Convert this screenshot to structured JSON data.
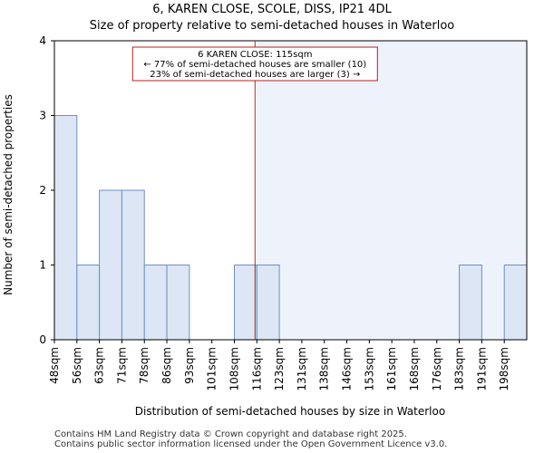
{
  "chart_data": {
    "type": "bar",
    "title": "6, KAREN CLOSE, SCOLE, DISS, IP21 4DL",
    "subtitle": "Size of property relative to semi-detached houses in Waterloo",
    "xlabel": "Distribution of semi-detached houses by size in Waterloo",
    "ylabel": "Number of semi-detached properties",
    "categories": [
      "48sqm",
      "56sqm",
      "63sqm",
      "71sqm",
      "78sqm",
      "86sqm",
      "93sqm",
      "101sqm",
      "108sqm",
      "116sqm",
      "123sqm",
      "131sqm",
      "138sqm",
      "146sqm",
      "153sqm",
      "161sqm",
      "168sqm",
      "176sqm",
      "183sqm",
      "191sqm",
      "198sqm"
    ],
    "values": [
      3,
      1,
      2,
      2,
      1,
      1,
      0,
      0,
      1,
      1,
      0,
      0,
      0,
      0,
      0,
      0,
      0,
      0,
      1,
      0,
      1
    ],
    "ylim": [
      0,
      4
    ],
    "yticks": [
      0,
      1,
      2,
      3,
      4
    ],
    "grid": false,
    "marker": {
      "value_sqm": 115,
      "category_index": 9,
      "lines": [
        "6 KAREN CLOSE: 115sqm",
        "← 77% of semi-detached houses are smaller (10)",
        "23% of semi-detached houses are larger (3) →"
      ],
      "color": "#b22222"
    },
    "bar_fill": "#dce6f4",
    "bar_stroke": "#6f8fc4",
    "highlight_fill": "#eef2fb"
  },
  "footer": {
    "line1": "Contains HM Land Registry data © Crown copyright and database right 2025.",
    "line2": "Contains public sector information licensed under the Open Government Licence v3.0."
  }
}
